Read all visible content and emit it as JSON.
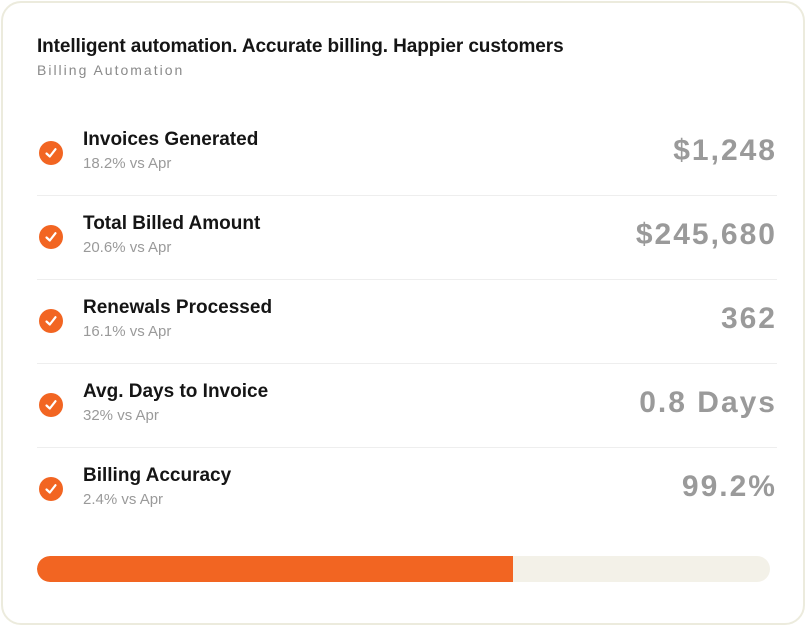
{
  "header": {
    "title": "Intelligent automation. Accurate billing. Happier customers",
    "subtitle": "Billing Automation"
  },
  "metrics": [
    {
      "icon": "check-circle-icon",
      "label": "Invoices Generated",
      "change": "18.2% vs Apr",
      "value": "$1,248"
    },
    {
      "icon": "check-circle-icon",
      "label": "Total Billed Amount",
      "change": "20.6% vs Apr",
      "value": "$245,680"
    },
    {
      "icon": "check-circle-icon",
      "label": "Renewals Processed",
      "change": "16.1% vs Apr",
      "value": "362"
    },
    {
      "icon": "check-circle-icon",
      "label": "Avg. Days to Invoice",
      "change": "32% vs Apr",
      "value": "0.8 Days"
    },
    {
      "icon": "check-circle-icon",
      "label": "Billing Accuracy",
      "change": "2.4% vs Apr",
      "value": "99.2%"
    }
  ],
  "progress": {
    "fraction": 0.65
  },
  "colors": {
    "accent": "#f26522",
    "track": "#f3f1e8",
    "value_text": "#9a9a9a"
  }
}
